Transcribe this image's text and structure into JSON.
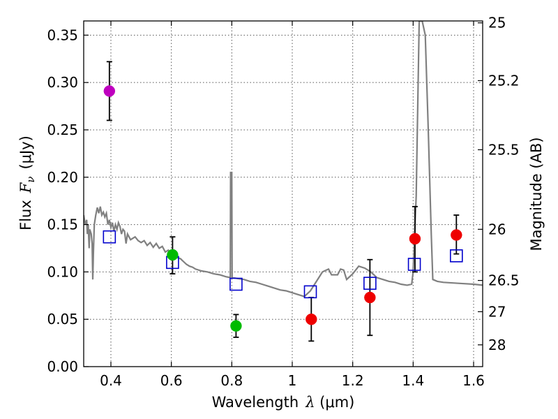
{
  "chart_data": {
    "type": "scatter",
    "title": "",
    "xlabel": "Wavelength",
    "xlabel_symbol": "λ",
    "xlabel_unit": " (μm)",
    "ylabel": "Flux",
    "ylabel_symbol": "F",
    "ylabel_subscript": "ν",
    "ylabel_unit": "(μJy)",
    "y2label": "Magnitude (AB)",
    "xlim": [
      0.31,
      1.63
    ],
    "ylim": [
      0.0,
      0.365
    ],
    "grid": true,
    "x_ticks": [
      0.4,
      0.6,
      0.8,
      1.0,
      1.2,
      1.4,
      1.6
    ],
    "x_tick_labels": [
      "0.4",
      "0.6",
      "0.8",
      "1",
      "1.2",
      "1.4",
      "1.6"
    ],
    "y_ticks": [
      0.0,
      0.05,
      0.1,
      0.15,
      0.2,
      0.25,
      0.3,
      0.35
    ],
    "y_tick_labels": [
      "0.00",
      "0.05",
      "0.10",
      "0.15",
      "0.20",
      "0.25",
      "0.30",
      "0.35"
    ],
    "y2_ticks": [
      {
        "label": "25",
        "flux": 0.363
      },
      {
        "label": "25.2",
        "flux": 0.302
      },
      {
        "label": "25.5",
        "flux": 0.229
      },
      {
        "label": "26",
        "flux": 0.145
      },
      {
        "label": "26.5",
        "flux": 0.091
      },
      {
        "label": "27",
        "flux": 0.058
      },
      {
        "label": "28",
        "flux": 0.023
      }
    ],
    "colors": {
      "spectrum": "#808080",
      "model": "#0000cc",
      "magenta": "#bf00bf",
      "green": "#00bb00",
      "red": "#ee0000",
      "errorbar": "#000000",
      "grid": "#555555"
    },
    "spectrum": [
      [
        0.31,
        0.16
      ],
      [
        0.315,
        0.15
      ],
      [
        0.32,
        0.155
      ],
      [
        0.322,
        0.14
      ],
      [
        0.325,
        0.15
      ],
      [
        0.328,
        0.125
      ],
      [
        0.33,
        0.145
      ],
      [
        0.335,
        0.14
      ],
      [
        0.338,
        0.13
      ],
      [
        0.34,
        0.092
      ],
      [
        0.342,
        0.12
      ],
      [
        0.345,
        0.15
      ],
      [
        0.35,
        0.16
      ],
      [
        0.355,
        0.168
      ],
      [
        0.36,
        0.162
      ],
      [
        0.365,
        0.169
      ],
      [
        0.37,
        0.16
      ],
      [
        0.375,
        0.163
      ],
      [
        0.38,
        0.158
      ],
      [
        0.385,
        0.162
      ],
      [
        0.39,
        0.15
      ],
      [
        0.395,
        0.155
      ],
      [
        0.4,
        0.147
      ],
      [
        0.405,
        0.152
      ],
      [
        0.41,
        0.143
      ],
      [
        0.415,
        0.15
      ],
      [
        0.42,
        0.145
      ],
      [
        0.425,
        0.152
      ],
      [
        0.43,
        0.148
      ],
      [
        0.435,
        0.14
      ],
      [
        0.44,
        0.145
      ],
      [
        0.445,
        0.143
      ],
      [
        0.45,
        0.13
      ],
      [
        0.455,
        0.14
      ],
      [
        0.46,
        0.137
      ],
      [
        0.465,
        0.134
      ],
      [
        0.47,
        0.135
      ],
      [
        0.48,
        0.137
      ],
      [
        0.49,
        0.133
      ],
      [
        0.5,
        0.131
      ],
      [
        0.51,
        0.133
      ],
      [
        0.52,
        0.128
      ],
      [
        0.53,
        0.131
      ],
      [
        0.54,
        0.126
      ],
      [
        0.55,
        0.13
      ],
      [
        0.56,
        0.125
      ],
      [
        0.57,
        0.127
      ],
      [
        0.58,
        0.121
      ],
      [
        0.59,
        0.123
      ],
      [
        0.6,
        0.118
      ],
      [
        0.61,
        0.119
      ],
      [
        0.62,
        0.115
      ],
      [
        0.63,
        0.114
      ],
      [
        0.64,
        0.111
      ],
      [
        0.65,
        0.108
      ],
      [
        0.66,
        0.106
      ],
      [
        0.67,
        0.105
      ],
      [
        0.68,
        0.103
      ],
      [
        0.7,
        0.101
      ],
      [
        0.72,
        0.1
      ],
      [
        0.74,
        0.098
      ],
      [
        0.76,
        0.097
      ],
      [
        0.78,
        0.095
      ],
      [
        0.795,
        0.094
      ],
      [
        0.796,
        0.205
      ],
      [
        0.8,
        0.205
      ],
      [
        0.801,
        0.094
      ],
      [
        0.82,
        0.093
      ],
      [
        0.84,
        0.092
      ],
      [
        0.86,
        0.09
      ],
      [
        0.88,
        0.089
      ],
      [
        0.9,
        0.087
      ],
      [
        0.92,
        0.085
      ],
      [
        0.94,
        0.083
      ],
      [
        0.96,
        0.081
      ],
      [
        0.98,
        0.08
      ],
      [
        1.0,
        0.078
      ],
      [
        1.02,
        0.076
      ],
      [
        1.04,
        0.074
      ],
      [
        1.06,
        0.08
      ],
      [
        1.08,
        0.09
      ],
      [
        1.1,
        0.1
      ],
      [
        1.12,
        0.103
      ],
      [
        1.13,
        0.097
      ],
      [
        1.15,
        0.097
      ],
      [
        1.16,
        0.103
      ],
      [
        1.17,
        0.102
      ],
      [
        1.18,
        0.092
      ],
      [
        1.2,
        0.098
      ],
      [
        1.22,
        0.106
      ],
      [
        1.24,
        0.104
      ],
      [
        1.26,
        0.1
      ],
      [
        1.28,
        0.094
      ],
      [
        1.3,
        0.092
      ],
      [
        1.32,
        0.09
      ],
      [
        1.34,
        0.089
      ],
      [
        1.36,
        0.087
      ],
      [
        1.38,
        0.086
      ],
      [
        1.395,
        0.087
      ],
      [
        1.4,
        0.1
      ],
      [
        1.41,
        0.18
      ],
      [
        1.42,
        0.365
      ],
      [
        1.43,
        0.365
      ],
      [
        1.44,
        0.35
      ],
      [
        1.45,
        0.25
      ],
      [
        1.46,
        0.14
      ],
      [
        1.465,
        0.092
      ],
      [
        1.48,
        0.09
      ],
      [
        1.5,
        0.089
      ],
      [
        1.55,
        0.088
      ],
      [
        1.6,
        0.087
      ],
      [
        1.63,
        0.086
      ]
    ],
    "model_points": [
      {
        "x": 0.395,
        "y": 0.137
      },
      {
        "x": 0.604,
        "y": 0.11
      },
      {
        "x": 0.814,
        "y": 0.087
      },
      {
        "x": 1.06,
        "y": 0.079
      },
      {
        "x": 1.257,
        "y": 0.088
      },
      {
        "x": 1.404,
        "y": 0.108
      },
      {
        "x": 1.543,
        "y": 0.117
      }
    ],
    "photometry": [
      {
        "x": 0.395,
        "y": 0.291,
        "err_low": 0.26,
        "err_high": 0.322,
        "color": "magenta"
      },
      {
        "x": 0.604,
        "y": 0.118,
        "err_low": 0.098,
        "err_high": 0.137,
        "color": "green"
      },
      {
        "x": 0.814,
        "y": 0.043,
        "err_low": 0.031,
        "err_high": 0.055,
        "color": "green"
      },
      {
        "x": 1.063,
        "y": 0.05,
        "err_low": 0.027,
        "err_high": 0.073,
        "color": "red"
      },
      {
        "x": 1.257,
        "y": 0.073,
        "err_low": 0.033,
        "err_high": 0.113,
        "color": "red"
      },
      {
        "x": 1.406,
        "y": 0.135,
        "err_low": 0.1,
        "err_high": 0.169,
        "color": "red"
      },
      {
        "x": 1.543,
        "y": 0.139,
        "err_low": 0.119,
        "err_high": 0.16,
        "color": "red"
      }
    ]
  }
}
